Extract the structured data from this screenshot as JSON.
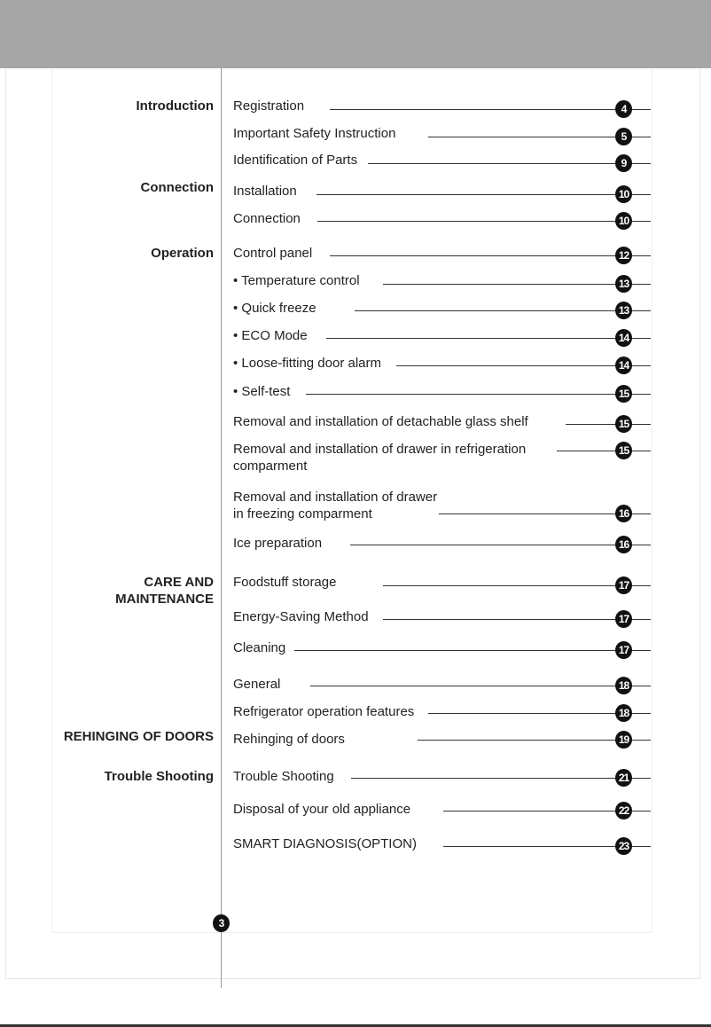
{
  "sections": [
    {
      "label": "Introduction"
    },
    {
      "label": "Connection"
    },
    {
      "label": "Operation"
    },
    {
      "label": "CARE AND\nMAINTENANCE"
    },
    {
      "label": "REHINGING OF DOORS"
    },
    {
      "label": "Trouble Shooting"
    }
  ],
  "entries": [
    {
      "title": "Registration",
      "page": "4"
    },
    {
      "title": "Important Safety Instruction",
      "page": "5"
    },
    {
      "title": "Identification of Parts",
      "page": "9"
    },
    {
      "title": "Installation",
      "page": "10"
    },
    {
      "title": "Connection",
      "page": "10"
    },
    {
      "title": "Control panel",
      "page": "12"
    },
    {
      "title": "• Temperature control",
      "page": "13"
    },
    {
      "title": "• Quick freeze",
      "page": "13"
    },
    {
      "title": "• ECO Mode",
      "page": "14"
    },
    {
      "title": "• Loose-fitting door alarm",
      "page": "14"
    },
    {
      "title": "• Self-test",
      "page": "15"
    },
    {
      "title": "Removal and installation of detachable glass shelf",
      "page": "15"
    },
    {
      "title": "Removal and installation of drawer in refrigeration\ncomparment",
      "page": "15"
    },
    {
      "title": "Removal and installation of drawer\nin freezing comparment",
      "page": "16"
    },
    {
      "title": "Ice preparation",
      "page": "16"
    },
    {
      "title": "Foodstuff storage",
      "page": "17"
    },
    {
      "title": "Energy-Saving Method",
      "page": "17"
    },
    {
      "title": "Cleaning",
      "page": "17"
    },
    {
      "title": "General",
      "page": "18"
    },
    {
      "title": "Refrigerator operation features",
      "page": "18"
    },
    {
      "title": "Rehinging of doors",
      "page": "19"
    },
    {
      "title": "Trouble Shooting",
      "page": "21"
    },
    {
      "title": "Disposal of your old appliance",
      "page": "22"
    },
    {
      "title": "SMART DIAGNOSIS(OPTION)",
      "page": "23"
    }
  ],
  "page_number": "3",
  "colors": {
    "header": "#a7a6a7",
    "badge": "#111111"
  }
}
